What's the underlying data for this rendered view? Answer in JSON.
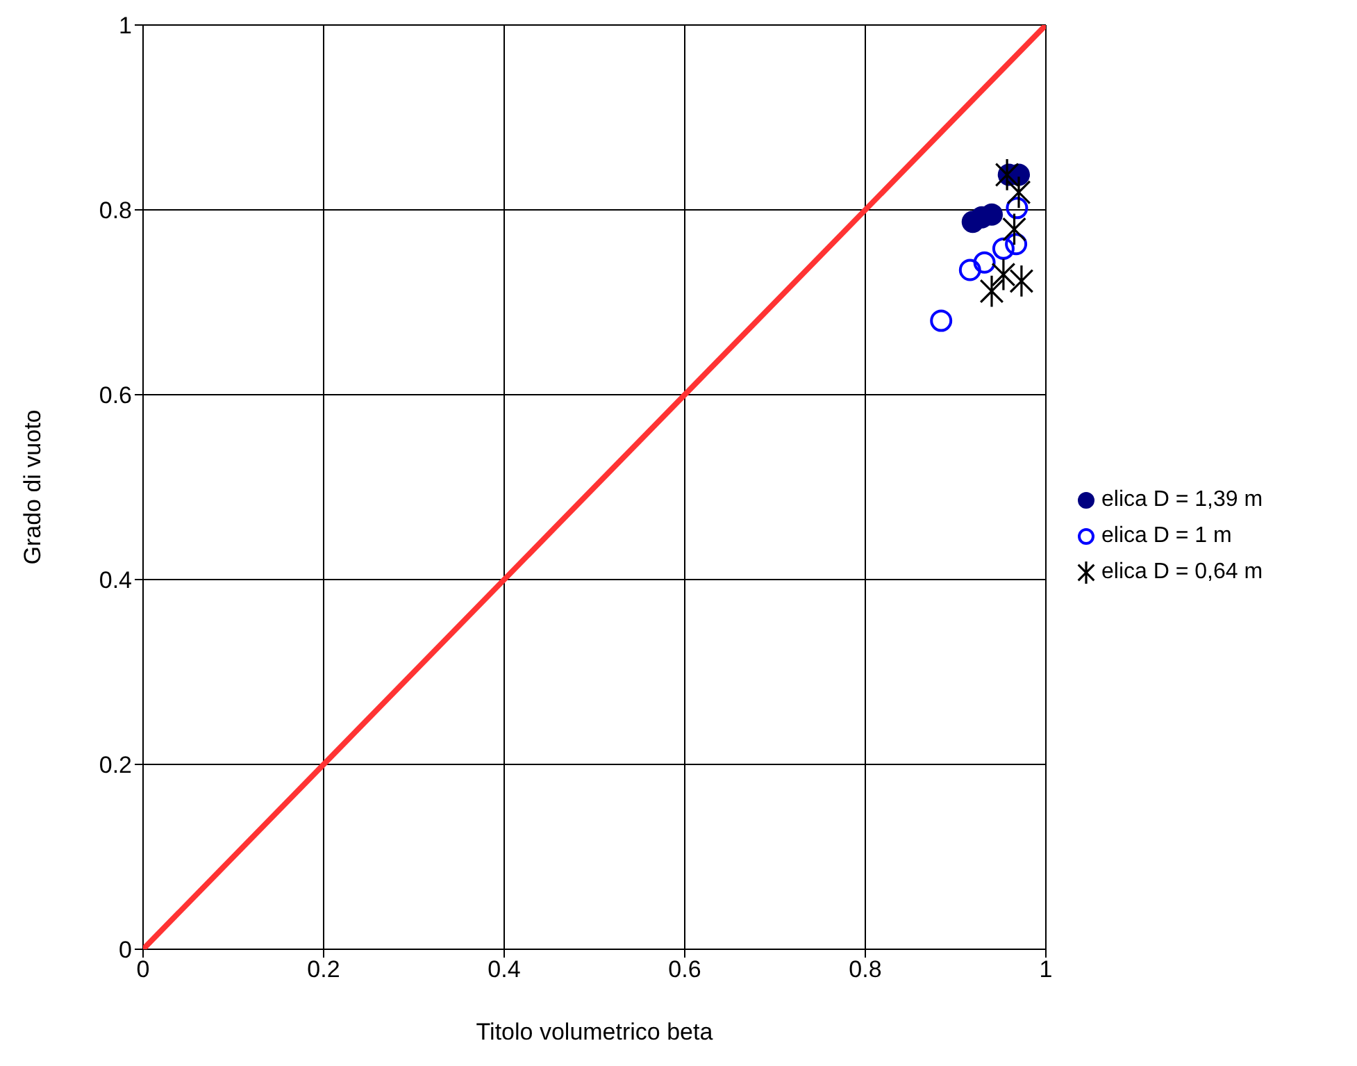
{
  "chart_data": {
    "type": "scatter",
    "xlabel": "Titolo volumetrico beta",
    "ylabel": "Grado di vuoto",
    "xlim": [
      0,
      1
    ],
    "ylim": [
      0,
      1
    ],
    "xticks": [
      0,
      0.2,
      0.4,
      0.6,
      0.8,
      1
    ],
    "yticks": [
      0,
      0.2,
      0.4,
      0.6,
      0.8,
      1
    ],
    "grid": true,
    "legend": "right",
    "series": [
      {
        "name": "elica D = 1,39 m",
        "color": "#000080",
        "marker": "circle",
        "x": [
          0.959,
          0.97,
          0.919,
          0.929,
          0.94
        ],
        "values": [
          0.838,
          0.838,
          0.787,
          0.792,
          0.795
        ]
      },
      {
        "name": "elica D = 1 m",
        "color": "#0000ff",
        "marker": "circle",
        "x": [
          0.884,
          0.916,
          0.932,
          0.953,
          0.967,
          0.968
        ],
        "values": [
          0.68,
          0.735,
          0.743,
          0.758,
          0.763,
          0.802
        ]
      },
      {
        "name": "elica D = 0,64 m",
        "color": "#000000",
        "marker": "cross",
        "x": [
          0.957,
          0.97,
          0.965,
          0.953,
          0.94,
          0.973
        ],
        "values": [
          0.838,
          0.819,
          0.779,
          0.73,
          0.712,
          0.723
        ]
      },
      {
        "type": "line",
        "color": "#ff3333",
        "marker": "none",
        "x": [
          0,
          1
        ],
        "values": [
          0,
          1
        ]
      }
    ]
  }
}
